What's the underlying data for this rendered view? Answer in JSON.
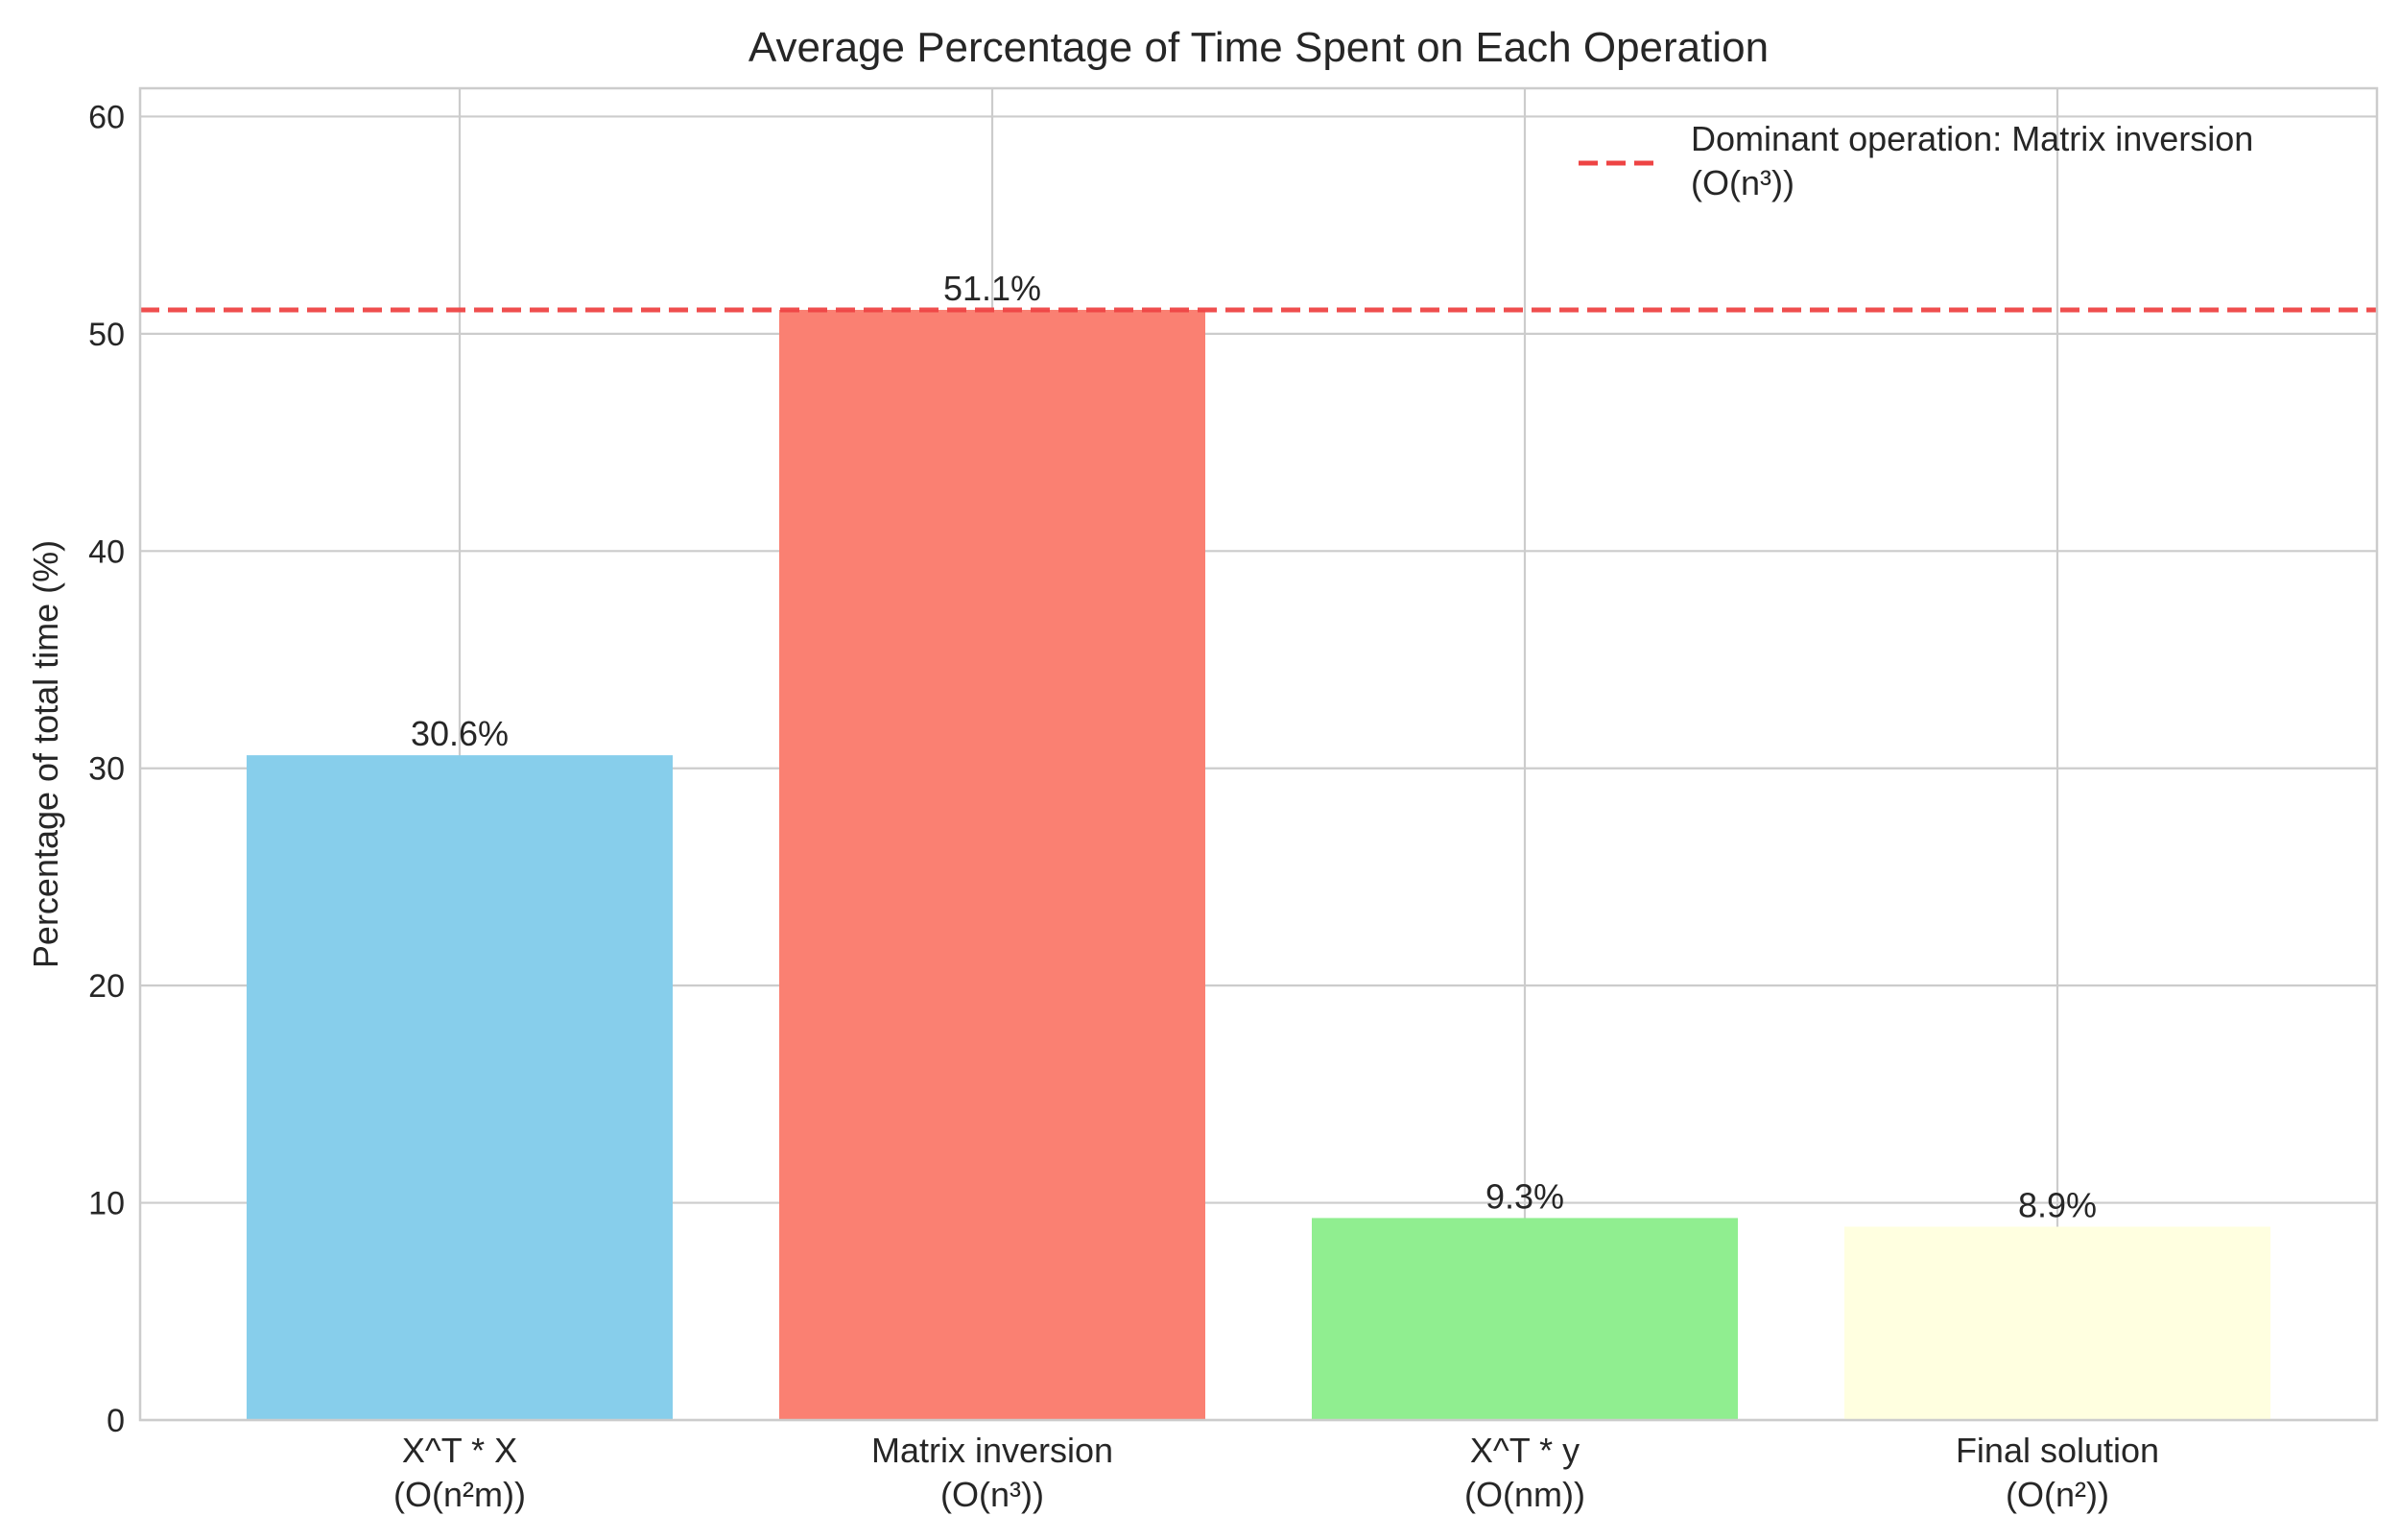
{
  "chart_data": {
    "type": "bar",
    "title": "Average Percentage of Time Spent on Each Operation",
    "xlabel": "",
    "ylabel": "Percentage of total time (%)",
    "ylim": [
      0,
      61.3
    ],
    "yticks": [
      0,
      10,
      20,
      30,
      40,
      50,
      60
    ],
    "grid": true,
    "categories": [
      [
        "X^T * X",
        "(O(n²m))"
      ],
      [
        "Matrix inversion",
        "(O(n³))"
      ],
      [
        "X^T * y",
        "(O(nm))"
      ],
      [
        "Final solution",
        "(O(n²))"
      ]
    ],
    "values": [
      30.6,
      51.1,
      9.3,
      8.9
    ],
    "data_labels": [
      "30.6%",
      "51.1%",
      "9.3%",
      "8.9%"
    ],
    "colors": [
      "#87ceeb",
      "#fa8072",
      "#90ee90",
      "#ffffe0"
    ],
    "reference_line": {
      "value": 51.1,
      "color": "#ee4444",
      "style": "dashed",
      "legend_lines": [
        "Dominant operation: Matrix inversion",
        "(O(n³))"
      ]
    },
    "legend_position": "top-right"
  }
}
